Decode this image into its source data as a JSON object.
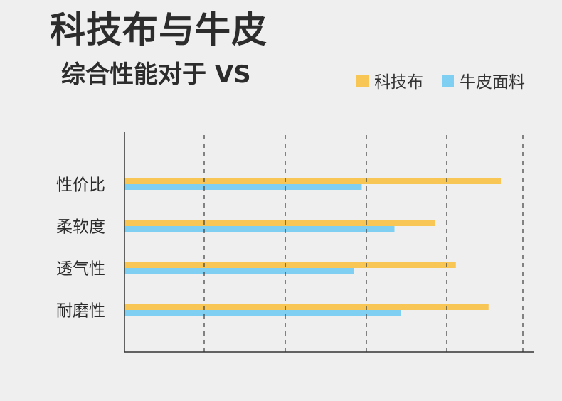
{
  "title": "科技布与牛皮",
  "subtitle": "综合性能对于 VS",
  "chart_data": {
    "type": "bar",
    "orientation": "horizontal",
    "categories": [
      "性价比",
      "柔软度",
      "透气性",
      "耐磨性"
    ],
    "series": [
      {
        "name": "科技布",
        "color": "#f7c654",
        "values": [
          92,
          76,
          81,
          89
        ]
      },
      {
        "name": "牛皮面料",
        "color": "#7ecff2",
        "values": [
          58,
          66,
          56,
          67.5
        ]
      }
    ],
    "xlim": [
      0,
      100
    ],
    "grid": true,
    "legend_position": "top-right",
    "xlabel": "",
    "ylabel": ""
  }
}
